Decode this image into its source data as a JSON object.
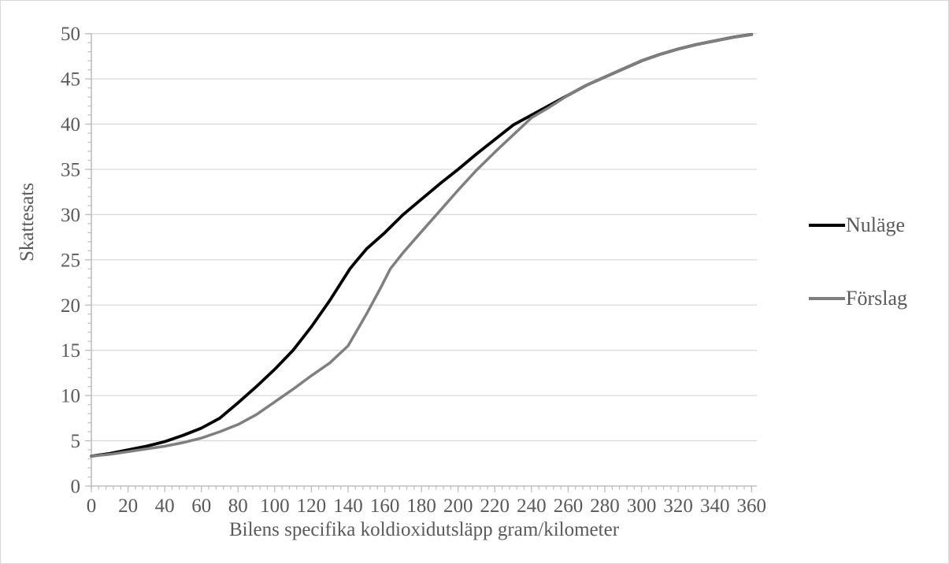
{
  "chart_data": {
    "type": "line",
    "title": "",
    "xlabel": "Bilens specifika koldioxidutsläpp gram/kilometer",
    "ylabel": "Skattesats",
    "xlim": [
      0,
      360
    ],
    "ylim": [
      0,
      50
    ],
    "x_tick_step": 20,
    "y_tick_step": 5,
    "x_minor_tick_step": 4,
    "y_minor_tick_step": 1,
    "grid": "horizontal",
    "legend_position": "right",
    "colors": {
      "text": "#595959",
      "gridline": "#d9d9d9",
      "axis": "#bfbfbf",
      "background": "#ffffff"
    },
    "series": [
      {
        "name": "Nuläge",
        "slug": "nulage",
        "color": "#000000",
        "line_width": 3.8,
        "points": [
          [
            0,
            3.3
          ],
          [
            10,
            3.6
          ],
          [
            20,
            4.0
          ],
          [
            30,
            4.4
          ],
          [
            40,
            4.9
          ],
          [
            50,
            5.6
          ],
          [
            60,
            6.4
          ],
          [
            70,
            7.5
          ],
          [
            80,
            9.2
          ],
          [
            90,
            11.0
          ],
          [
            100,
            12.9
          ],
          [
            110,
            15.0
          ],
          [
            120,
            17.6
          ],
          [
            130,
            20.5
          ],
          [
            141,
            24.0
          ],
          [
            145,
            25.0
          ],
          [
            150,
            26.2
          ],
          [
            160,
            28.0
          ],
          [
            170,
            30.0
          ],
          [
            180,
            31.7
          ],
          [
            190,
            33.4
          ],
          [
            200,
            35.0
          ],
          [
            210,
            36.7
          ],
          [
            220,
            38.3
          ],
          [
            230,
            39.9
          ],
          [
            240,
            41.0
          ],
          [
            250,
            42.1
          ],
          [
            260,
            43.2
          ],
          [
            270,
            44.3
          ],
          [
            280,
            45.2
          ],
          [
            290,
            46.1
          ],
          [
            300,
            47.0
          ],
          [
            310,
            47.7
          ],
          [
            320,
            48.3
          ],
          [
            330,
            48.8
          ],
          [
            340,
            49.2
          ],
          [
            350,
            49.6
          ],
          [
            360,
            49.9
          ]
        ]
      },
      {
        "name": "Förslag",
        "slug": "forslag",
        "color": "#7f7f7f",
        "line_width": 3.5,
        "points": [
          [
            0,
            3.3
          ],
          [
            10,
            3.5
          ],
          [
            20,
            3.8
          ],
          [
            30,
            4.1
          ],
          [
            40,
            4.4
          ],
          [
            50,
            4.8
          ],
          [
            60,
            5.3
          ],
          [
            70,
            6.0
          ],
          [
            80,
            6.8
          ],
          [
            90,
            7.9
          ],
          [
            100,
            9.3
          ],
          [
            110,
            10.7
          ],
          [
            120,
            12.2
          ],
          [
            130,
            13.6
          ],
          [
            140,
            15.5
          ],
          [
            150,
            19.0
          ],
          [
            158,
            22.0
          ],
          [
            163,
            24.0
          ],
          [
            170,
            25.8
          ],
          [
            180,
            28.1
          ],
          [
            190,
            30.4
          ],
          [
            200,
            32.7
          ],
          [
            210,
            34.9
          ],
          [
            220,
            36.9
          ],
          [
            230,
            38.8
          ],
          [
            240,
            40.7
          ],
          [
            250,
            41.9
          ],
          [
            260,
            43.2
          ],
          [
            270,
            44.3
          ],
          [
            280,
            45.2
          ],
          [
            290,
            46.1
          ],
          [
            300,
            47.0
          ],
          [
            310,
            47.7
          ],
          [
            320,
            48.3
          ],
          [
            330,
            48.8
          ],
          [
            340,
            49.2
          ],
          [
            350,
            49.6
          ],
          [
            360,
            49.9
          ]
        ]
      }
    ],
    "x_tick_labels": [
      "0",
      "20",
      "40",
      "60",
      "80",
      "100",
      "120",
      "140",
      "160",
      "180",
      "200",
      "220",
      "240",
      "260",
      "280",
      "300",
      "320",
      "340",
      "360"
    ],
    "y_tick_labels": [
      "0",
      "5",
      "10",
      "15",
      "20",
      "25",
      "30",
      "35",
      "40",
      "45",
      "50"
    ]
  }
}
